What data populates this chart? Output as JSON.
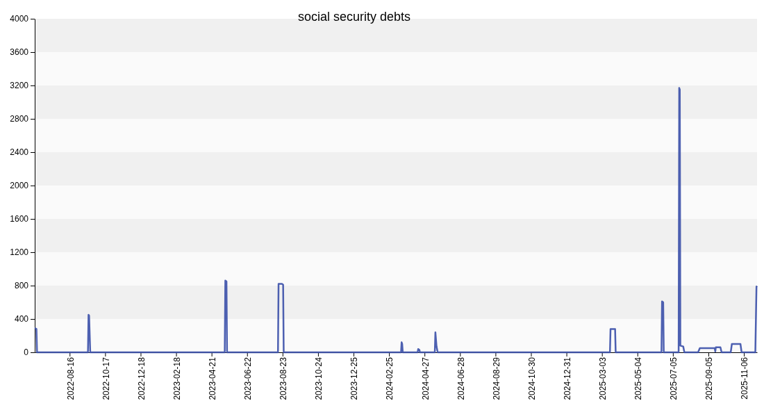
{
  "chart_data": {
    "type": "line",
    "title": "social security debts",
    "x": [
      "2022-06-16",
      "2022-06-19",
      "2022-06-20",
      "2022-09-17",
      "2022-09-18",
      "2022-09-19",
      "2022-09-21",
      "2023-05-14",
      "2023-05-15",
      "2023-05-17",
      "2023-05-18",
      "2023-08-15",
      "2023-08-16",
      "2023-08-22",
      "2023-08-24",
      "2023-08-25",
      "2024-03-17",
      "2024-03-18",
      "2024-03-19",
      "2024-03-20",
      "2024-04-15",
      "2024-04-16",
      "2024-04-18",
      "2024-04-19",
      "2024-05-15",
      "2024-05-16",
      "2024-05-18",
      "2024-05-20",
      "2025-03-17",
      "2025-03-18",
      "2025-03-26",
      "2025-03-27",
      "2025-06-15",
      "2025-06-16",
      "2025-06-18",
      "2025-06-19",
      "2025-07-15",
      "2025-07-16",
      "2025-07-17",
      "2025-07-18",
      "2025-07-23",
      "2025-07-25",
      "2025-08-18",
      "2025-08-21",
      "2025-09-16",
      "2025-09-17",
      "2025-09-18",
      "2025-09-26",
      "2025-09-28",
      "2025-10-14",
      "2025-10-16",
      "2025-10-29",
      "2025-10-31",
      "2025-11-02",
      "2025-11-26",
      "2025-11-28",
      "2025-11-29"
    ],
    "series": [
      {
        "color": "#3a4fa8",
        "values": [
          290,
          280,
          0,
          0,
          450,
          440,
          0,
          0,
          860,
          850,
          0,
          0,
          820,
          820,
          810,
          0,
          0,
          120,
          100,
          0,
          0,
          40,
          30,
          0,
          0,
          240,
          70,
          0,
          0,
          280,
          280,
          0,
          0,
          610,
          600,
          0,
          0,
          3170,
          3150,
          80,
          70,
          0,
          0,
          50,
          50,
          10,
          60,
          60,
          0,
          0,
          100,
          100,
          100,
          0,
          0,
          790,
          780
        ]
      }
    ],
    "xlim": [
      "2022-06-16",
      "2025-11-29"
    ],
    "xticks": [
      "2022-08-16",
      "2022-10-17",
      "2022-12-18",
      "2023-02-18",
      "2023-04-21",
      "2023-06-22",
      "2023-08-23",
      "2023-10-24",
      "2023-12-25",
      "2024-02-25",
      "2024-04-27",
      "2024-06-28",
      "2024-08-29",
      "2024-10-30",
      "2024-12-31",
      "2025-03-03",
      "2025-05-04",
      "2025-07-05",
      "2025-09-05",
      "2025-11-06"
    ],
    "ylim": [
      0,
      4000
    ],
    "yticks": [
      0,
      400,
      800,
      1200,
      1600,
      2000,
      2400,
      2800,
      3200,
      3600,
      4000
    ],
    "marker": "none",
    "line_style": "solid"
  }
}
